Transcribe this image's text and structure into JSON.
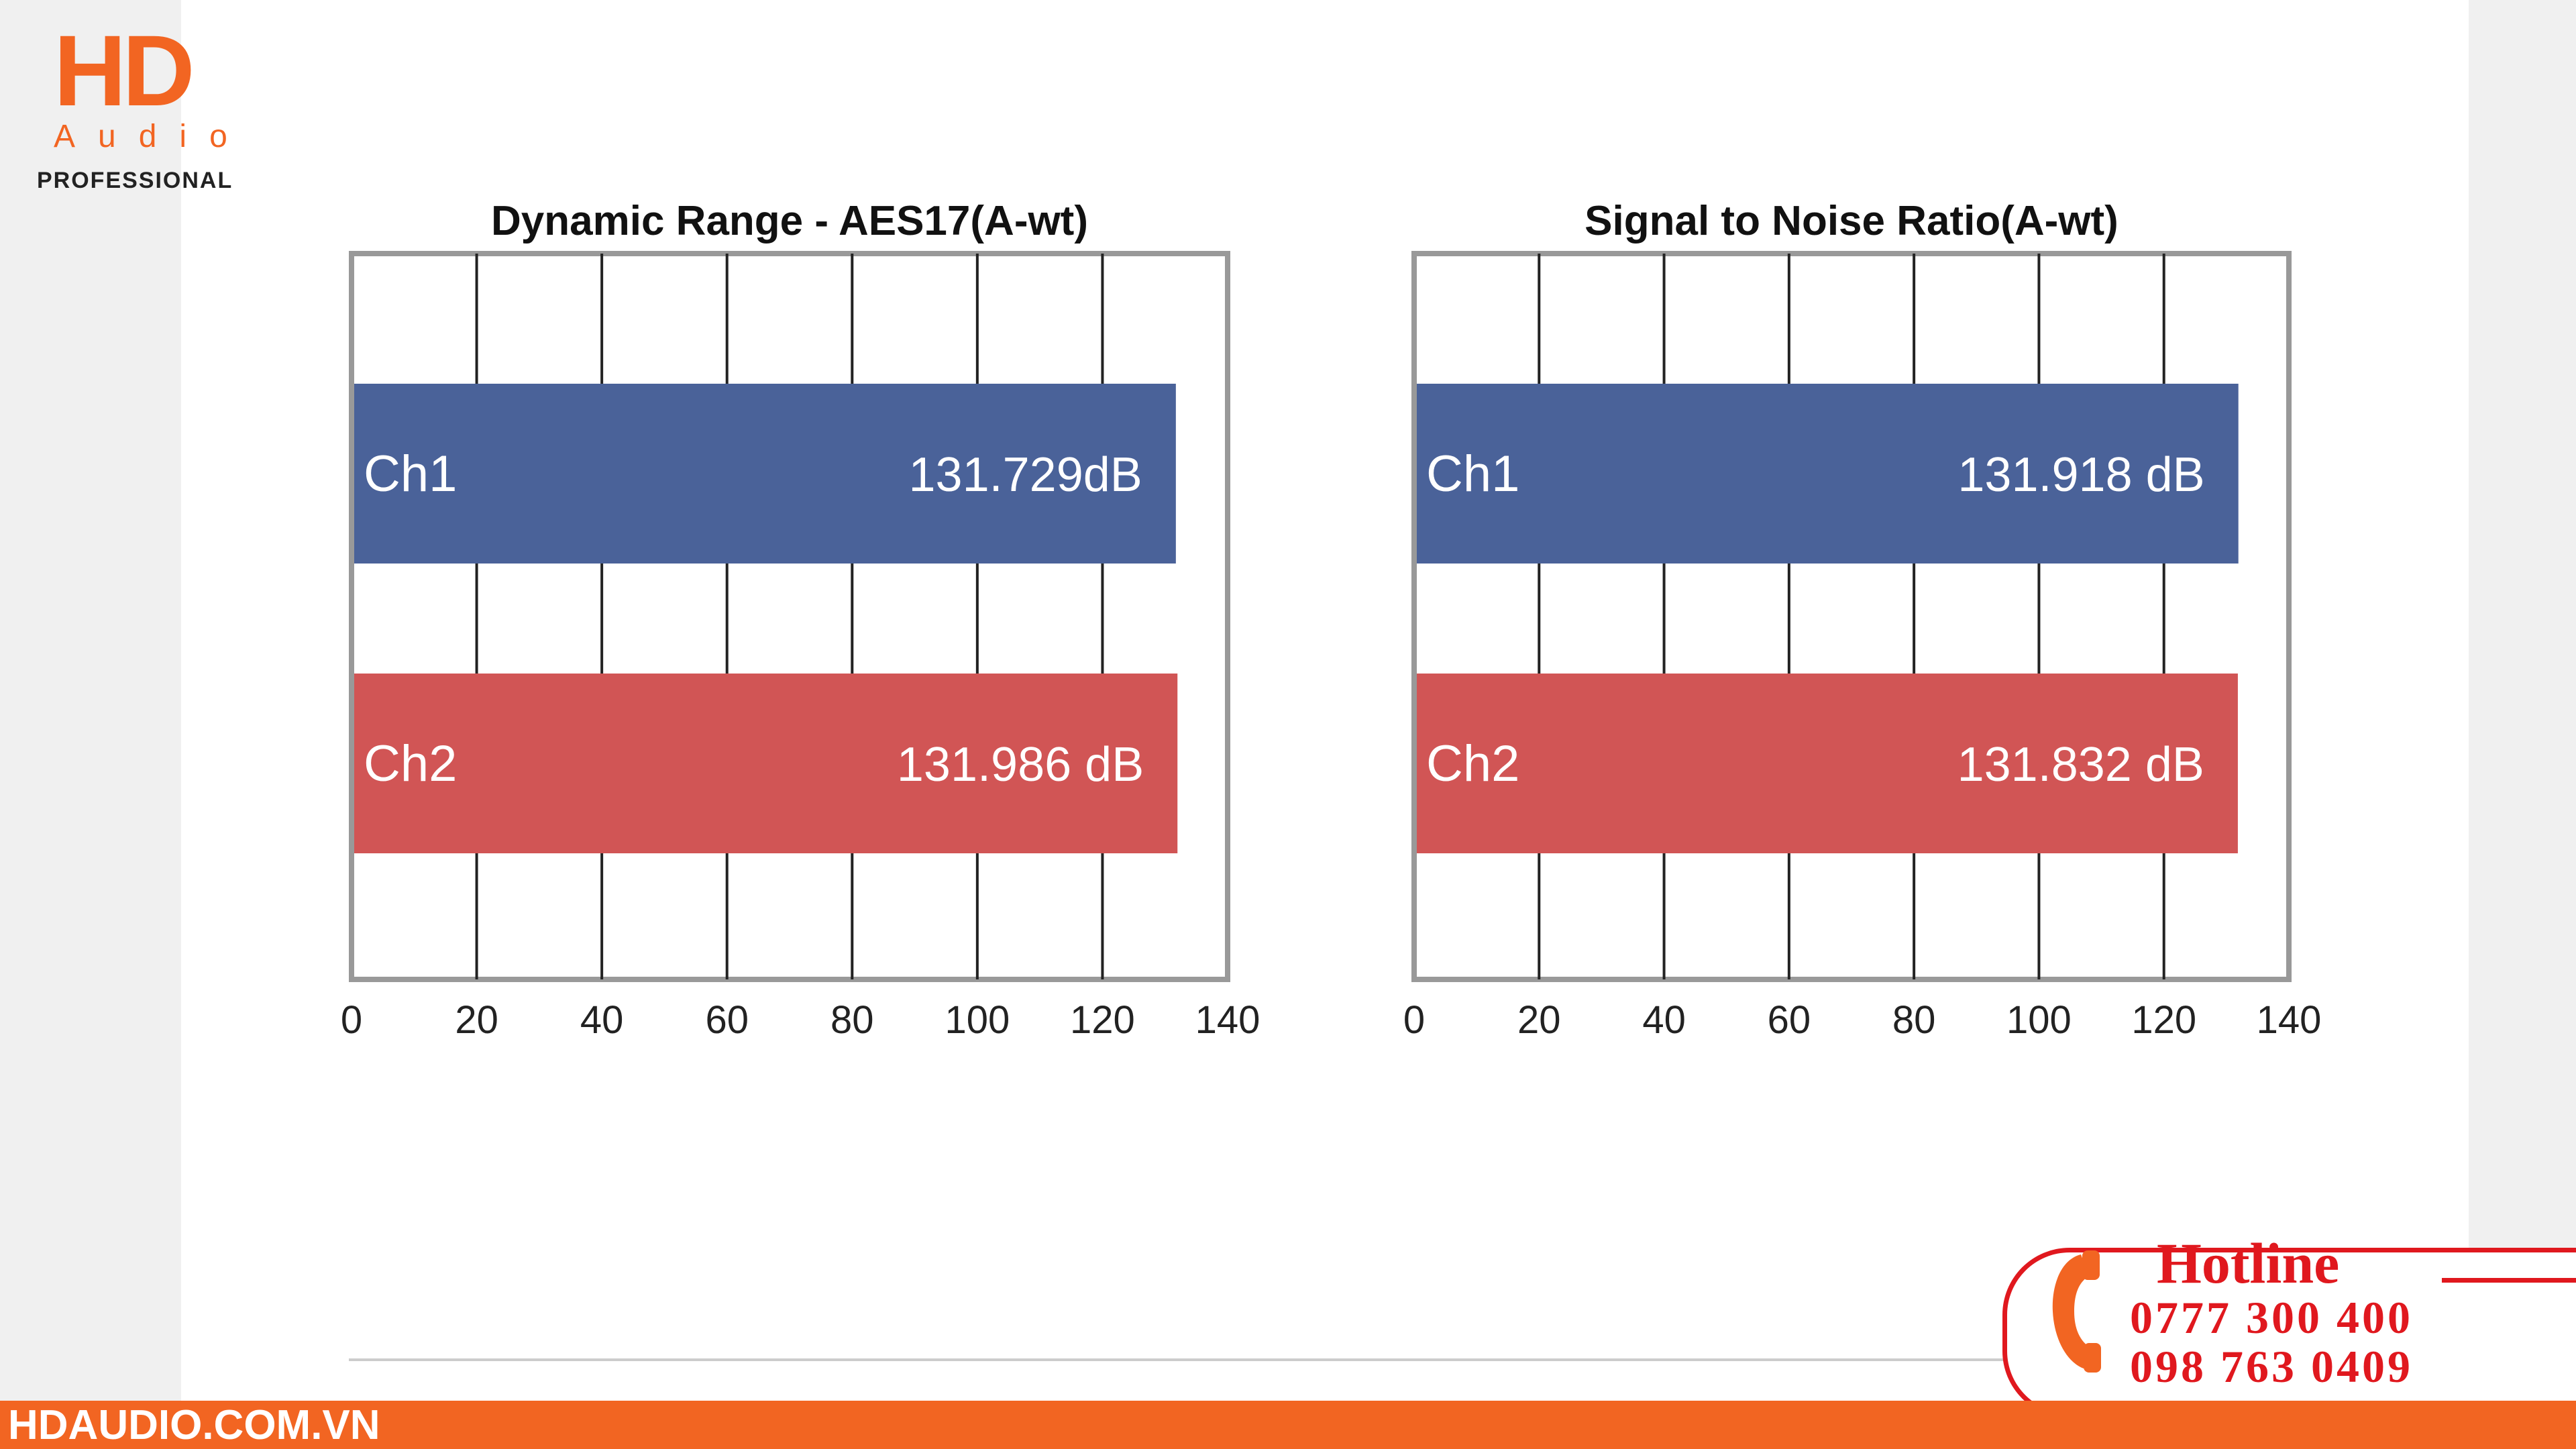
{
  "brand": {
    "logo_main": "HD",
    "logo_sub": "Audio",
    "logo_tagline": "PROFESSIONAL",
    "website": "HDAUDIO.COM.VN",
    "accent": "#f26522"
  },
  "hotline": {
    "title": "Hotline",
    "numbers": [
      "0777 300 400",
      "098 763 0409"
    ],
    "icon": "phone-icon",
    "color": "#e0181e"
  },
  "chart_data": [
    {
      "type": "bar",
      "orientation": "horizontal",
      "title": "Dynamic Range - AES17(A-wt)",
      "categories": [
        "Ch1",
        "Ch2"
      ],
      "values": [
        131.729,
        131.986
      ],
      "value_labels": [
        "131.729dB",
        "131.986 dB"
      ],
      "colors": [
        "#4a6299",
        "#d15555"
      ],
      "xlim": [
        0,
        140
      ],
      "xticks": [
        "0",
        "20",
        "40",
        "60",
        "80",
        "100",
        "120",
        "140"
      ],
      "grid": true
    },
    {
      "type": "bar",
      "orientation": "horizontal",
      "title": "Signal to Noise Ratio(A-wt)",
      "categories": [
        "Ch1",
        "Ch2"
      ],
      "values": [
        131.918,
        131.832
      ],
      "value_labels": [
        "131.918 dB",
        "131.832 dB"
      ],
      "colors": [
        "#4a6299",
        "#d15555"
      ],
      "xlim": [
        0,
        140
      ],
      "xticks": [
        "0",
        "20",
        "40",
        "60",
        "80",
        "100",
        "120",
        "140"
      ],
      "grid": true
    }
  ]
}
